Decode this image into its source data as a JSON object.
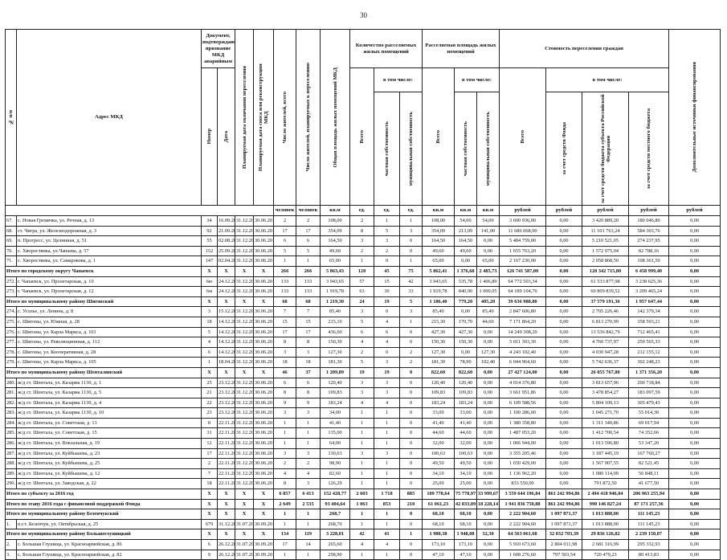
{
  "page_number": "30",
  "header": {
    "num": "№ п/п",
    "address": "Адрес МКД",
    "doc": "Документ, подтверждающий признание МКД аварийным",
    "doc_number": "Номер",
    "doc_date": "Дата",
    "end_date": "Планируемая дата окончания переселения",
    "demolish_date": "Планируемая дата сноса или реконструкции МКД",
    "residents": "Число жителей, всего",
    "residents_moving": "Число жителей, планируемых к переселению",
    "total_area": "Общая площадь жилых помещений МКД",
    "count_group": "Количество расселяемых жилых помещений",
    "area_group": "Расселяемая площадь жилых помещений",
    "cost_group": "Стоимость переселения граждан",
    "extra": "Дополнительные источники финансирования",
    "total": "Всего",
    "incl": "в том числе:",
    "private": "частная собственность",
    "municipal": "муниципальная собственность",
    "fund": "за счет средств Фонда",
    "region": "за счет средств бюджета субъекта Российской Федерации",
    "local": "за счет средств местного бюджета"
  },
  "units": [
    "человек",
    "человек",
    "кв.м",
    "ед.",
    "ед.",
    "ед.",
    "кв.м",
    "кв.м",
    "кв.м",
    "рублей",
    "рублей",
    "рублей",
    "рублей",
    "рублей"
  ],
  "table": {
    "rows": [
      {
        "n": "67.",
        "address": "с. Новая Гремячка, ул. Речная, д. 13",
        "cells": [
          "34",
          "16.09.2011",
          "31.12.2016",
          "30.06.2017",
          "2",
          "2",
          "108,00",
          "2",
          "1",
          "1",
          "108,00",
          "54,00",
          "54,00",
          "3 600 936,00",
          "0,00",
          "3 420 889,20",
          "180 046,80",
          "0,00"
        ]
      },
      {
        "n": "68.",
        "address": "ст. Чигра, ул. Железнодорожная, д. 3",
        "cells": [
          "92",
          "21.09.2011",
          "31.12.2016",
          "30.06.2017",
          "17",
          "17",
          "354,09",
          "8",
          "5",
          "3",
          "354,09",
          "213,09",
          "141,00",
          "11 686 068,00",
          "0,00",
          "11 101 763,24",
          "584 303,76",
          "0,00"
        ]
      },
      {
        "n": "69.",
        "address": "п. Прогресс, ул. Целинная, д. 51",
        "cells": [
          "55",
          "02.08.2011",
          "31.12.2016",
          "30.06.2017",
          "6",
          "6",
          "164,50",
          "3",
          "3",
          "0",
          "164,50",
          "164,50",
          "0,00",
          "5 484 759,00",
          "0,00",
          "5 210 521,05",
          "274 237,95",
          "0,00"
        ]
      },
      {
        "n": "70.",
        "address": "с. Хворостянка, ул.Чапаева, д. 57",
        "cells": [
          "152",
          "25.09.2011",
          "31.12.2016",
          "30.06.2017",
          "5",
          "5",
          "49,60",
          "2",
          "2",
          "0",
          "49,60",
          "49,60",
          "0,00",
          "1 655 763,20",
          "0,00",
          "1 572 975,04",
          "82 788,16",
          "0,00"
        ]
      },
      {
        "n": "71.",
        "address": "с. Хворостянка, ул. Самарокова, д. 1",
        "cells": [
          "147",
          "02.04.2010",
          "31.12.2016",
          "30.06.2017",
          "1",
          "1",
          "65,00",
          "1",
          "0",
          "1",
          "65,00",
          "0,00",
          "65,00",
          "2 167 230,00",
          "0,00",
          "2 058 868,50",
          "108 361,50",
          "0,00"
        ]
      },
      {
        "label": "Итого по городскому округу Чапаевск",
        "cells": [
          "X",
          "X",
          "X",
          "X",
          "266",
          "266",
          "5 863,43",
          "120",
          "45",
          "75",
          "5 862,41",
          "1 376,68",
          "2 485,73",
          "126 741 587,00",
          "0,00",
          "120 342 715,80",
          "6 458 999,40",
          "0,00"
        ]
      },
      {
        "n": "272.",
        "address": "г. Чапаевск, ул. Пролетарская, д. 10",
        "cells": [
          "6ю",
          "24.12.2008",
          "31.12.2016",
          "30.06.2017",
          "133",
          "133",
          "3 943,65",
          "57",
          "15",
          "42",
          "3 943,65",
          "535,78",
          "1 406,89",
          "64 772 503,34",
          "0,00",
          "61 533 877,98",
          "3 238 625,36",
          "0,00"
        ]
      },
      {
        "n": "273.",
        "address": "г. Чапаевск, ул. Пролетарская, д. 12",
        "cells": [
          "6м",
          "24.12.2008",
          "31.12.2016",
          "30.06.2017",
          "133",
          "133",
          "1 919,78",
          "63",
          "30",
          "33",
          "1 919,78",
          "840,90",
          "1 000,05",
          "64 189 104,76",
          "0,00",
          "60 809 839,52",
          "3 209 465,24",
          "0,00"
        ]
      },
      {
        "label": "Итого по муниципальному району Шиговский",
        "cells": [
          "X",
          "X",
          "X",
          "X",
          "68",
          "68",
          "1 219,30",
          "24",
          "19",
          "5",
          "1 186,40",
          "779,20",
          "405,20",
          "39 636 988,80",
          "0,00",
          "37 579 191,36",
          "1 957 647,44",
          "0,00"
        ]
      },
      {
        "n": "274.",
        "address": "с. Усолье, ул. Ленина, д. 8",
        "cells": [
          "3",
          "15.12.2011",
          "31.12.2016",
          "30.06.2017",
          "7",
          "7",
          "85,40",
          "3",
          "0",
          "3",
          "85,40",
          "0,00",
          "85,40",
          "2 847 606,80",
          "0,00",
          "2 705 226,46",
          "142 379,34",
          "0,00"
        ]
      },
      {
        "n": "275.",
        "address": "с. Шигоны, ул. Южная, д. 28",
        "cells": [
          "18",
          "14.12.2011",
          "31.12.2016",
          "30.06.2017",
          "15",
          "15",
          "215,10",
          "5",
          "4",
          "1",
          "215,30",
          "170,70",
          "44,60",
          "7 171 864,20",
          "0,00",
          "6 813 270,99",
          "358 593,21",
          "0,00"
        ]
      },
      {
        "n": "276.",
        "address": "с. Шигоны, ул. Карла Маркса, д. 101",
        "cells": [
          "5",
          "14.12.2011",
          "31.12.2016",
          "30.06.2017",
          "17",
          "17",
          "436,60",
          "6",
          "6",
          "0",
          "427,30",
          "427,30",
          "0,00",
          "14 249 308,20",
          "0,00",
          "13 536 842,79",
          "712 465,41",
          "0,00"
        ]
      },
      {
        "n": "277.",
        "address": "с. Шигоны, ул. Революционная, д. 112",
        "cells": [
          "4",
          "14.12.2011",
          "31.12.2016",
          "30.06.2017",
          "8",
          "8",
          "150,30",
          "4",
          "4",
          "0",
          "150,30",
          "150,30",
          "0,00",
          "5 011 303,30",
          "0,00",
          "4 760 737,97",
          "250 565,33",
          "0,00"
        ]
      },
      {
        "n": "278.",
        "address": "с. Шигоны, ул. Кооперативная, д. 28",
        "cells": [
          "6",
          "14.12.2011",
          "31.12.2016",
          "30.06.2017",
          "3",
          "3",
          "127,30",
          "2",
          "0",
          "2",
          "127,30",
          "0,00",
          "127,30",
          "4 243 102,40",
          "0,00",
          "4 030 947,28",
          "212 155,12",
          "0,00"
        ]
      },
      {
        "n": "279.",
        "address": "с. Шигоны, ул. Карла Маркса, д. 105",
        "cells": [
          "1",
          "18.04.2007",
          "31.12.2016",
          "30.06.2017",
          "18",
          "18",
          "181,30",
          "5",
          "3",
          "2",
          "181,30",
          "78,90",
          "102,40",
          "6 044 964,60",
          "0,00",
          "5 742 636,37",
          "302 248,23",
          "0,00"
        ]
      },
      {
        "label": "Итого по муниципальному району Шенталинский",
        "cells": [
          "X",
          "X",
          "X",
          "X",
          "46",
          "37",
          "1 209,89",
          "19",
          "19",
          "0",
          "822,60",
          "822,60",
          "0,00",
          "27 427 124,00",
          "0,00",
          "26 055 767,80",
          "1 371 356,20",
          "0,00"
        ]
      },
      {
        "n": "280.",
        "address": "ж/д ст. Шентала, ул. Казарма 1130, д. 1",
        "cells": [
          "25",
          "23.12.2011",
          "31.12.2016",
          "30.06.2017",
          "6",
          "6",
          "120,40",
          "3",
          "3",
          "0",
          "120,40",
          "120,40",
          "0,00",
          "4 014 376,80",
          "0,00",
          "3 813 657,96",
          "200 718,84",
          "0,00"
        ]
      },
      {
        "n": "281.",
        "address": "ж/д ст. Шентала, ул. Казарма 1130, д. 5",
        "cells": [
          "21",
          "23.12.2011",
          "31.12.2016",
          "30.06.2017",
          "8",
          "8",
          "109,83",
          "3",
          "3",
          "0",
          "109,83",
          "109,83",
          "0,00",
          "3 661 951,86",
          "0,00",
          "3 478 854,27",
          "183 097,59",
          "0,00"
        ]
      },
      {
        "n": "282.",
        "address": "ж/д ст. Шентала, ул. Казарма 1130, д. 4",
        "cells": [
          "22",
          "23.12.2011",
          "31.12.2016",
          "30.06.2017",
          "9",
          "9",
          "183,24",
          "4",
          "4",
          "0",
          "183,24",
          "183,24",
          "0,00",
          "6 109 588,56",
          "0,00",
          "5 804 109,13",
          "305 479,43",
          "0,00"
        ]
      },
      {
        "n": "283.",
        "address": "ж/д ст. Шентала, ул. Казарма 1130, д. 10",
        "cells": [
          "23",
          "23.12.2011",
          "31.12.2016",
          "30.06.2017",
          "3",
          "3",
          "34,00",
          "1",
          "1",
          "0",
          "33,00",
          "33,00",
          "0,00",
          "1 100 286,00",
          "0,00",
          "1 045 271,70",
          "55 014,30",
          "0,00"
        ]
      },
      {
        "n": "284.",
        "address": "ж/д ст. Шентала, ул. Советская, д. 13",
        "cells": [
          "8",
          "22.11.2006",
          "31.12.2016",
          "30.06.2017",
          "1",
          "1",
          "41,40",
          "1",
          "1",
          "0",
          "41,40",
          "41,40",
          "0,00",
          "1 380 358,80",
          "0,00",
          "1 311 340,86",
          "69 017,94",
          "0,00"
        ]
      },
      {
        "n": "285.",
        "address": "ж/д ст. Шентала, ул. Советская, д. 15",
        "cells": [
          "31",
          "22.11.2006",
          "31.12.2016",
          "30.06.2017",
          "1",
          "1",
          "135,00",
          "1",
          "1",
          "0",
          "44,60",
          "44,60",
          "0,00",
          "1 487 053,20",
          "0,00",
          "1 412 700,54",
          "74 352,66",
          "0,00"
        ]
      },
      {
        "n": "286.",
        "address": "ж/д ст. Шентала, ул. Вокзальная, д. 19",
        "cells": [
          "12",
          "22.11.2006",
          "31.12.2016",
          "30.06.2017",
          "1",
          "1",
          "64,00",
          "1",
          "1",
          "0",
          "32,00",
          "32,00",
          "0,00",
          "1 066 944,00",
          "0,00",
          "1 013 596,80",
          "53 347,20",
          "0,00"
        ]
      },
      {
        "n": "287.",
        "address": "ж/д ст. Шентала, ул. Куйбышева, д. 23",
        "cells": [
          "17",
          "22.11.2006",
          "31.12.2016",
          "30.06.2017",
          "3",
          "3",
          "130,63",
          "3",
          "3",
          "0",
          "100,63",
          "100,63",
          "0,00",
          "3 355 205,46",
          "0,00",
          "3 187 445,19",
          "167 760,27",
          "0,00"
        ]
      },
      {
        "n": "288.",
        "address": "ж/д ст. Шентала, ул. Куйбышева, д. 25",
        "cells": [
          "2",
          "22.11.2006",
          "31.12.2016",
          "30.06.2017",
          "2",
          "2",
          "98,90",
          "1",
          "1",
          "0",
          "49,50",
          "49,50",
          "0,00",
          "1 650 429,00",
          "0,00",
          "1 567 907,55",
          "82 521,45",
          "0,00"
        ]
      },
      {
        "n": "289.",
        "address": "ж/д ст. Шентала, ул. Куйбышева, д. 12",
        "cells": [
          "7",
          "22.11.2006",
          "31.12.2016",
          "30.06.2017",
          "4",
          "4",
          "82,60",
          "1",
          "1",
          "0",
          "34,10",
          "34,10",
          "0,00",
          "1 136 962,20",
          "0,00",
          "1 080 114,09",
          "56 848,11",
          "0,00"
        ]
      },
      {
        "n": "290.",
        "address": "ж/д ст. Шентала, ул. Заводская, д. 22",
        "cells": [
          "18",
          "22.11.2006",
          "31.12.2016",
          "30.06.2017",
          "8",
          "3",
          "126,29",
          "1",
          "1",
          "0",
          "25,00",
          "25,00",
          "0,00",
          "833 550,00",
          "0,00",
          "791 872,50",
          "41 677,50",
          "0,00"
        ]
      },
      {
        "label": "Итого по субъекту за 2016 год",
        "cells": [
          "X",
          "X",
          "X",
          "X",
          "6 857",
          "6 413",
          "152 428,77",
          "2 603",
          "1 718",
          "885",
          "109 778,64",
          "75 778,97",
          "33 999,67",
          "3 559 644 196,84",
          "861 242 994,86",
          "2 494 418 946,04",
          "206 963 255,94",
          "0,00"
        ]
      },
      {
        "label": "Итого по этапу 2016 года с финансовой поддержкой Фонда",
        "cells": [
          "X",
          "X",
          "X",
          "X",
          "2 649",
          "2 535",
          "93 404,64",
          "1 063",
          "853",
          "210",
          "61 061,23",
          "42 833,09",
          "18 228,14",
          "1 941 836 750,88",
          "861 242 994,86",
          "990 146 827,24",
          "87 171 257,36",
          "0,00"
        ]
      },
      {
        "label": "Итого по муниципальному району Безенчукский",
        "cells": [
          "X",
          "X",
          "X",
          "X",
          "1",
          "1",
          "268,7",
          "1",
          "1",
          "0",
          "68,10",
          "68,10",
          "0,00",
          "2 222 904,60",
          "1 097 871,37",
          "1 013 888,00",
          "111 145,23",
          "0,00"
        ]
      },
      {
        "n": "1.",
        "address": "п.г.т. Безенчук, ул. Октябрьская, д. 25",
        "cells": [
          "679",
          "31.12.2003",
          "31.07.2017",
          "30.09.2017",
          "1",
          "1",
          "268,70",
          "1",
          "1",
          "0",
          "68,10",
          "68,10",
          "0,00",
          "2 222 904,60",
          "1 097 871,37",
          "1 013 888,00",
          "111 145,23",
          "0,00"
        ]
      },
      {
        "label": "Итого по муниципальному району Большеглушицкий",
        "cells": [
          "X",
          "X",
          "X",
          "X",
          "134",
          "119",
          "3 228,01",
          "42",
          "41",
          "1",
          "1 980,38",
          "1 948,08",
          "32,30",
          "64 563 061,68",
          "32 032 703,39",
          "29 836 126,82",
          "2 239 150,07",
          "0,00"
        ]
      },
      {
        "n": "2.",
        "address": "с. Большая Глушица, ул. Красноармейская, д. 86",
        "cells": [
          "6",
          "26.12.2011",
          "31.07.2017",
          "30.09.2017",
          "17",
          "14",
          "265,60",
          "4",
          "4",
          "0",
          "173,10",
          "173,10",
          "0,00",
          "5 910 673,60",
          "2 804 011,98",
          "2 681 316,99",
          "295 332,93",
          "0,00"
        ]
      },
      {
        "n": "3.",
        "address": "с. Большая Глушица, ул. Красноармейская, д. 82",
        "cells": [
          "9",
          "26.12.2011",
          "31.07.2017",
          "30.09.2017",
          "1",
          "1",
          "258,90",
          "1",
          "1",
          "0",
          "47,10",
          "47,10",
          "0,00",
          "1 608 276,60",
          "797 503,54",
          "720 479,23",
          "80 413,83",
          "0,00"
        ]
      }
    ]
  }
}
